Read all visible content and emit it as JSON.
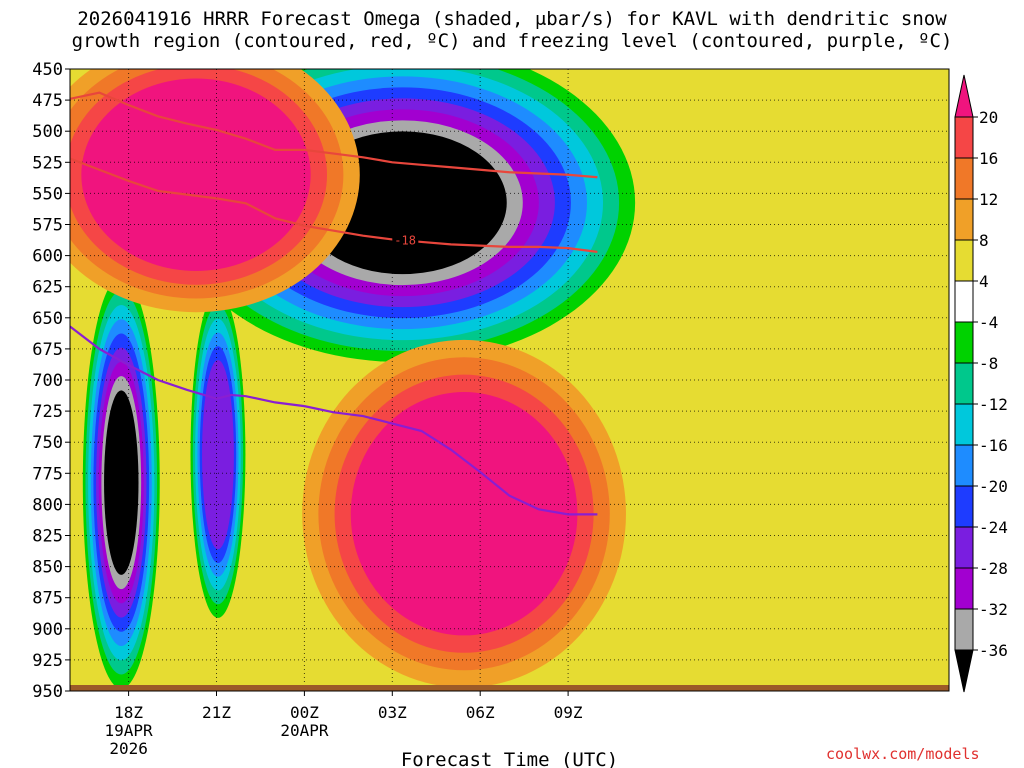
{
  "title_line1": "2026041916 HRRR Forecast Omega (shaded, μbar/s) for KAVL with dendritic snow",
  "title_line2": "growth region (contoured, red, ºC) and freezing level (contoured, purple, ºC)",
  "credit": "coolwx.com/models",
  "chart_data": {
    "type": "heatmap",
    "title": "2026041916 HRRR Forecast Omega (shaded, μbar/s) for KAVL with dendritic snow growth region (contoured, red, ºC) and freezing level (contoured, purple, ºC)",
    "xlabel": "Forecast Time (UTC)",
    "ylabel": "",
    "x_range_hours": [
      -2,
      28
    ],
    "y_range_hpa": [
      450,
      950
    ],
    "y_ticks": [
      450,
      475,
      500,
      525,
      550,
      575,
      600,
      625,
      650,
      675,
      700,
      725,
      750,
      775,
      800,
      825,
      850,
      875,
      900,
      925,
      950
    ],
    "x_ticks": [
      {
        "h": 0,
        "lines": [
          "18Z",
          "19APR",
          "2026"
        ]
      },
      {
        "h": 3,
        "lines": [
          "21Z"
        ]
      },
      {
        "h": 6,
        "lines": [
          "00Z",
          "20APR"
        ]
      },
      {
        "h": 9,
        "lines": [
          "03Z"
        ]
      },
      {
        "h": 12,
        "lines": [
          "06Z"
        ]
      },
      {
        "h": 15,
        "lines": [
          "09Z"
        ]
      }
    ],
    "colorbar": {
      "levels": [
        -36,
        -32,
        -28,
        -24,
        -20,
        -16,
        -12,
        -8,
        -4,
        4,
        8,
        12,
        16,
        20
      ],
      "colors": [
        "#000000",
        "#a9a9a9",
        "#a200d0",
        "#7a1ee0",
        "#1e3cff",
        "#1e8cff",
        "#00c8dc",
        "#00c88c",
        "#00d200",
        "#ffffff",
        "#e6dc32",
        "#f0a028",
        "#f07828",
        "#f54646",
        "#f0147e"
      ]
    },
    "omega_features": [
      {
        "name": "upper-right-upward-motion",
        "min_value": -36,
        "h_range": [
          3.0,
          15.7
        ],
        "p_range": [
          455,
          660
        ]
      },
      {
        "name": "left-low-level-upward-motion",
        "min_value": -36,
        "h_range": [
          -1.3,
          0.8
        ],
        "p_range": [
          650,
          915
        ]
      },
      {
        "name": "mid-low-level-upward-motion",
        "min_value": -24,
        "h_range": [
          2.3,
          3.8
        ],
        "p_range": [
          655,
          865
        ]
      },
      {
        "name": "upper-left-downward-motion",
        "max_value": 20,
        "h_range": [
          -2,
          6.6
        ],
        "p_range": [
          450,
          620
        ]
      },
      {
        "name": "lower-right-downward-motion",
        "max_value": 20,
        "h_range": [
          7.2,
          15.7
        ],
        "p_range": [
          700,
          915
        ]
      }
    ],
    "series": [
      {
        "name": "dendritic snow growth (-12 ºC)",
        "color": "#e8463c",
        "hours": [
          -2,
          -1,
          0,
          1,
          2,
          3,
          4,
          5,
          6,
          7,
          8,
          9,
          10,
          11,
          12,
          13,
          14,
          15,
          16
        ],
        "pressure": [
          474,
          469,
          479,
          488,
          494,
          499,
          506,
          515,
          515,
          518,
          521,
          525,
          527,
          529,
          531,
          533,
          534,
          535,
          537
        ]
      },
      {
        "name": "dendritic snow growth (-18 ºC)",
        "color": "#e8463c",
        "label": "-18",
        "hours": [
          -2,
          -1,
          0,
          1,
          2,
          3,
          4,
          5,
          6,
          7,
          8,
          9,
          10,
          11,
          12,
          13,
          14,
          15,
          16
        ],
        "pressure": [
          522,
          531,
          540,
          548,
          551,
          554,
          558,
          570,
          576,
          580,
          584,
          587,
          589,
          591,
          592,
          593,
          593,
          594,
          597
        ]
      },
      {
        "name": "freezing level (0 ºC)",
        "color": "#8a1ed2",
        "hours": [
          -2,
          -1,
          0,
          1,
          2,
          3,
          3.5,
          4,
          5,
          6,
          7,
          8,
          9,
          10,
          11,
          12,
          13,
          14,
          15,
          16
        ],
        "pressure": [
          657,
          675,
          688,
          700,
          708,
          715,
          712,
          713,
          718,
          721,
          726,
          729,
          735,
          741,
          756,
          774,
          793,
          804,
          808,
          808
        ]
      }
    ]
  }
}
